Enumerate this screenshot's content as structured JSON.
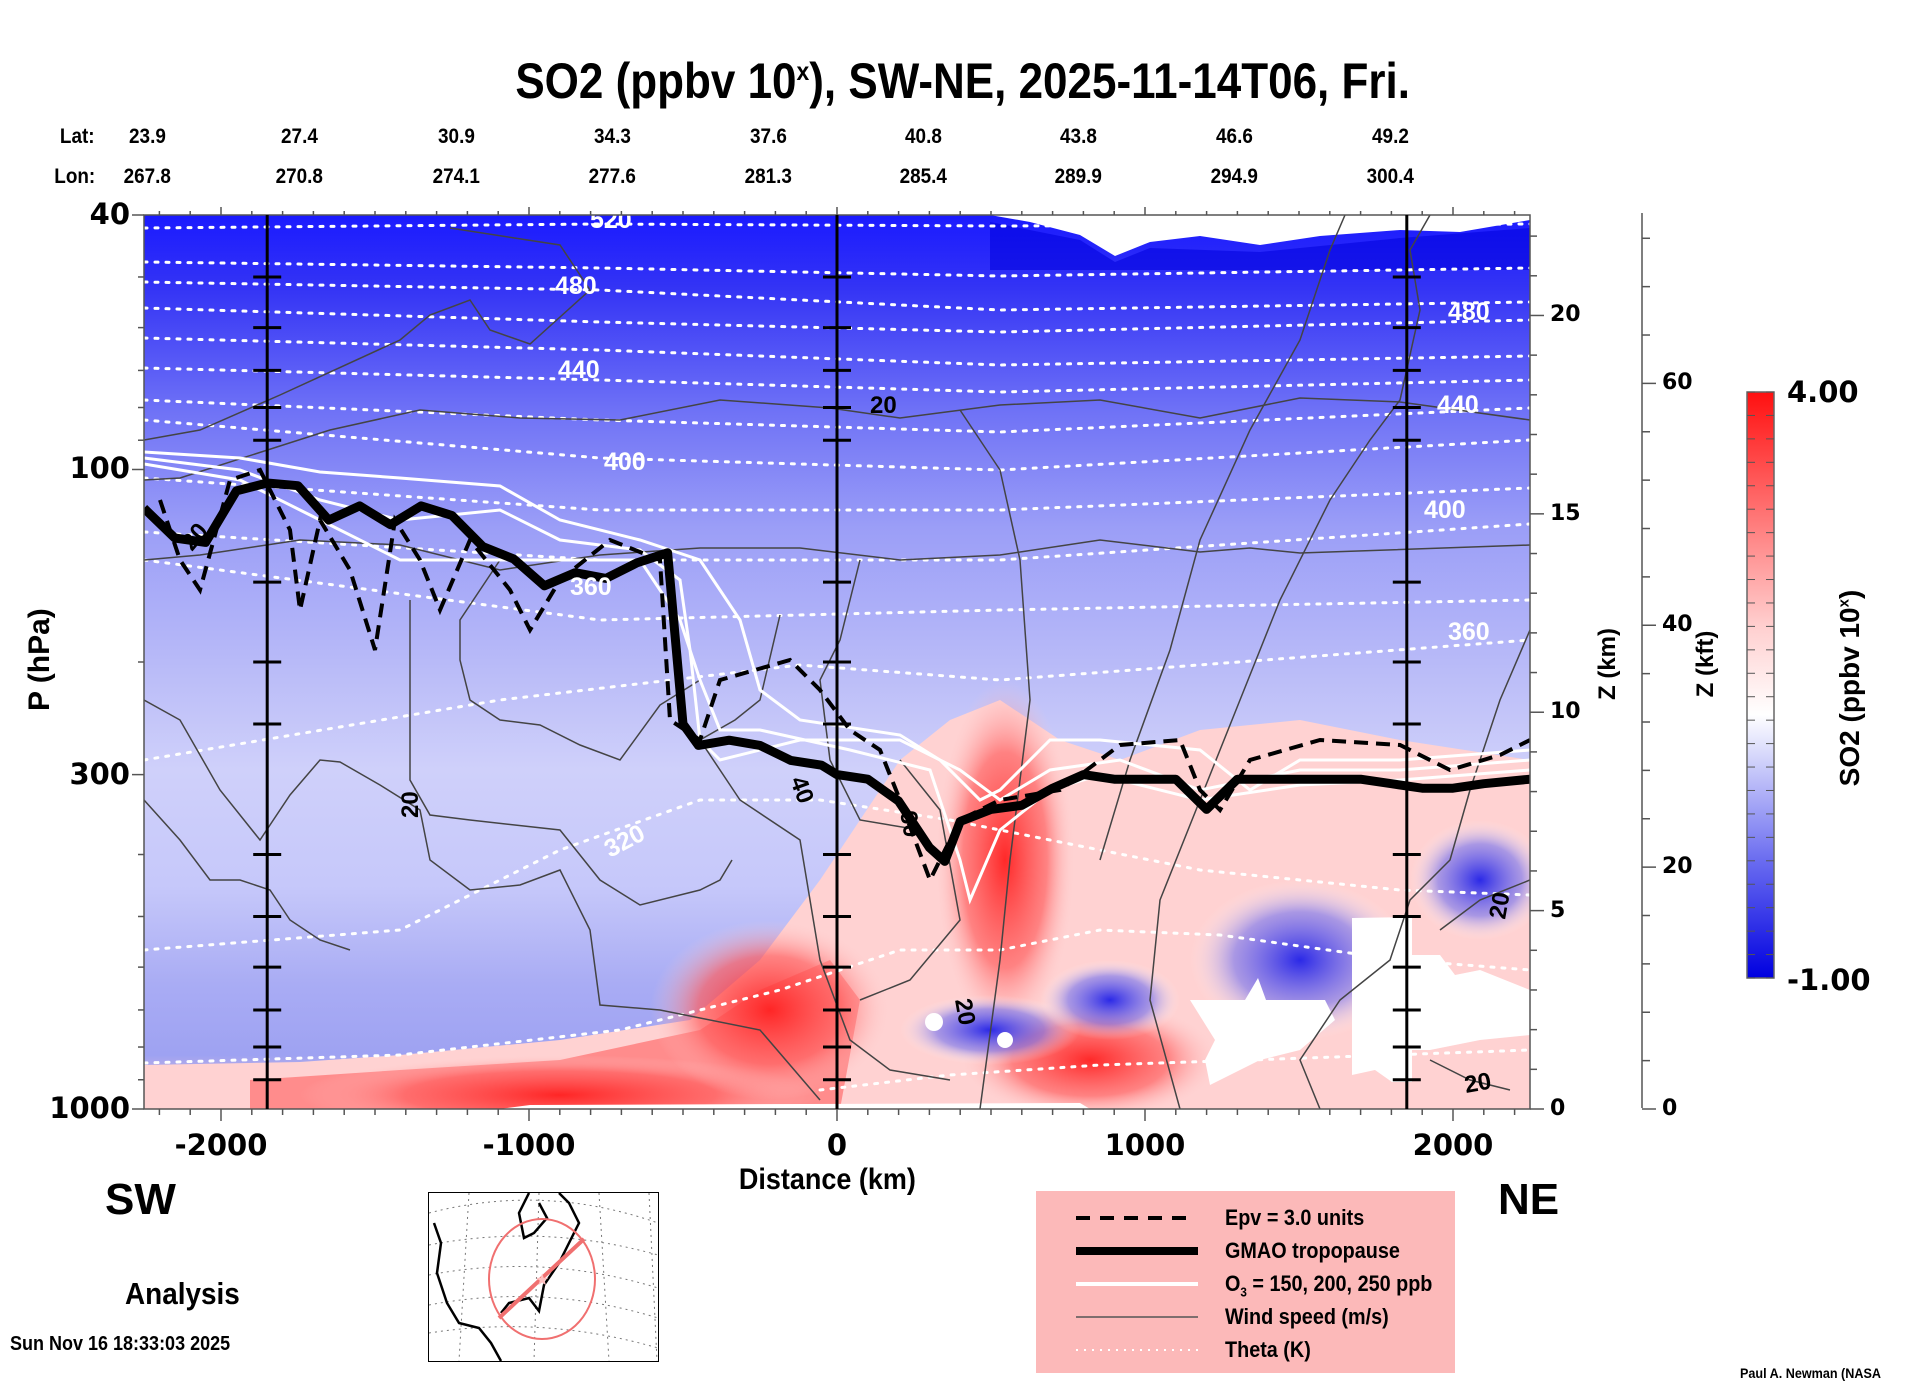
{
  "chart_data": {
    "type": "heatmap",
    "title": "SO2 (ppbv 10",
    "title_sup": "x",
    "title_rest": "), SW-NE, 2025-11-14T06, Fri.",
    "xlabel": "Distance (km)",
    "ylabel": "P (hPa)",
    "y2label": "Z (km)",
    "y3label": "Z (kft)",
    "xlim": [
      -2250,
      2250
    ],
    "ylim": [
      1000,
      40
    ],
    "yscale": "log",
    "x_ticks": [
      {
        "value": -2000,
        "label": "-2000"
      },
      {
        "value": -1000,
        "label": "-1000"
      },
      {
        "value": 0,
        "label": "0"
      },
      {
        "value": 1000,
        "label": "1000"
      },
      {
        "value": 2000,
        "label": "2000"
      }
    ],
    "y_ticks": [
      {
        "value": 40,
        "label": "40"
      },
      {
        "value": 100,
        "label": "100"
      },
      {
        "value": 300,
        "label": "300"
      },
      {
        "value": 1000,
        "label": "1000"
      }
    ],
    "zkm_ticks": [
      {
        "value": 0,
        "label": "0"
      },
      {
        "value": 5,
        "label": "5"
      },
      {
        "value": 10,
        "label": "10"
      },
      {
        "value": 15,
        "label": "15"
      },
      {
        "value": 20,
        "label": "20"
      }
    ],
    "zkft_ticks": [
      {
        "value": 0,
        "label": "0"
      },
      {
        "value": 20,
        "label": "20"
      },
      {
        "value": 40,
        "label": "40"
      },
      {
        "value": 60,
        "label": "60"
      }
    ],
    "lat_label": "Lat:",
    "lon_label": "Lon:",
    "lat_values": [
      "23.9",
      "27.4",
      "30.9",
      "34.3",
      "37.6",
      "40.8",
      "43.8",
      "46.6",
      "49.2"
    ],
    "lon_values": [
      "267.8",
      "270.8",
      "274.1",
      "277.6",
      "281.3",
      "285.4",
      "289.9",
      "294.9",
      "300.4"
    ],
    "vertical_markers_km": [
      -1850,
      0,
      1850
    ],
    "colorbar": {
      "label": "SO2 (ppbv 10",
      "label_sup": "x",
      "label_end": ")",
      "min": -1.0,
      "max": 4.0,
      "min_label": "-1.00",
      "max_label": "4.00",
      "colors": [
        "#0000e6",
        "#ffffff",
        "#ff1a1a"
      ]
    },
    "theta_contours_K": [
      {
        "value": 520,
        "label": "520"
      },
      {
        "value": 480,
        "label": "480"
      },
      {
        "value": 440,
        "label": "440"
      },
      {
        "value": 400,
        "label": "400"
      },
      {
        "value": 360,
        "label": "360"
      },
      {
        "value": 320,
        "label": "320"
      }
    ],
    "wind_contour_labels": [
      "20",
      "20",
      "20",
      "20",
      "40",
      "60",
      "20",
      "20",
      "20"
    ],
    "series": [
      {
        "name": "GMAO tropopause (hPa)",
        "x": [
          -2250,
          -2150,
          -2050,
          -1950,
          -1850,
          -1750,
          -1650,
          -1550,
          -1450,
          -1350,
          -1250,
          -1150,
          -1050,
          -950,
          -850,
          -750,
          -650,
          -550,
          -500,
          -450,
          -350,
          -250,
          -150,
          -50,
          0,
          100,
          200,
          300,
          350,
          400,
          500,
          600,
          700,
          800,
          900,
          1000,
          1100,
          1200,
          1300,
          1400,
          1500,
          1600,
          1700,
          1800,
          1900,
          2000,
          2100,
          2250
        ],
        "values": [
          115,
          128,
          130,
          108,
          105,
          106,
          120,
          114,
          122,
          114,
          118,
          132,
          138,
          152,
          145,
          148,
          140,
          135,
          250,
          270,
          265,
          270,
          285,
          290,
          300,
          305,
          330,
          390,
          410,
          355,
          340,
          335,
          315,
          300,
          305,
          305,
          305,
          340,
          305,
          305,
          305,
          305,
          305,
          310,
          315,
          315,
          310,
          305
        ]
      }
    ],
    "region_labels": {
      "left": "SW",
      "right": "NE"
    }
  },
  "legend": {
    "items": [
      {
        "label": "Epv = 3.0 units",
        "style": "dashed-black"
      },
      {
        "label": "GMAO tropopause",
        "style": "thick-black"
      },
      {
        "label": "O",
        "sub": "3",
        "label_rest": " = 150, 200, 250 ppb",
        "style": "white"
      },
      {
        "label": "Wind speed (m/s)",
        "style": "thin-gray"
      },
      {
        "label": "Theta (K)",
        "style": "dotted-white"
      }
    ]
  },
  "footer": {
    "analysis": "Analysis",
    "timestamp": "Sun Nov 16 18:33:03 2025",
    "credit": "Paul A. Newman (NASA"
  }
}
